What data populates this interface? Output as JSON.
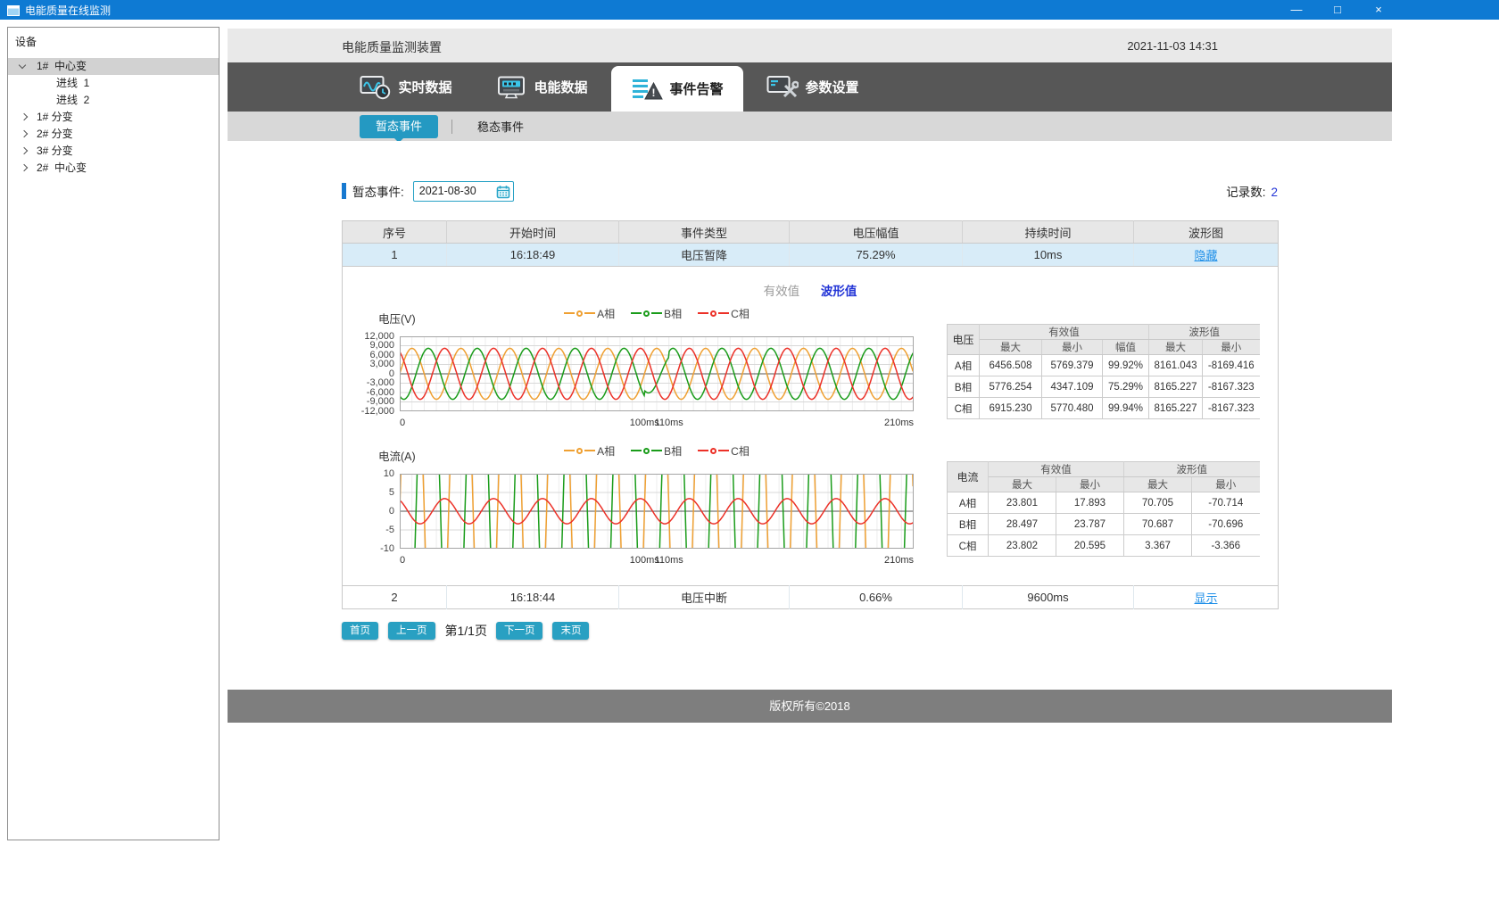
{
  "window": {
    "title": "电能质量在线监测",
    "minimize": "—",
    "maximize": "□",
    "close": "×"
  },
  "sidebar": {
    "header": "设备",
    "tree": [
      {
        "label": "1#  中心变",
        "level": 0,
        "state": "expanded",
        "selected": true
      },
      {
        "label": "进线  1",
        "level": 1,
        "state": "none",
        "selected": false
      },
      {
        "label": "进线  2",
        "level": 1,
        "state": "none",
        "selected": false
      },
      {
        "label": "1# 分变",
        "level": 0,
        "state": "collapsed",
        "selected": false
      },
      {
        "label": "2# 分变",
        "level": 0,
        "state": "collapsed",
        "selected": false
      },
      {
        "label": "3# 分变",
        "level": 0,
        "state": "collapsed",
        "selected": false
      },
      {
        "label": "2#  中心变",
        "level": 0,
        "state": "collapsed",
        "selected": false
      }
    ]
  },
  "header": {
    "title": "电能质量监测装置",
    "timestamp": "2021-11-03 14:31"
  },
  "tabs": [
    {
      "name": "realtime-data",
      "label": "实时数据",
      "icon": "realtime-data-icon",
      "active": false
    },
    {
      "name": "energy-data",
      "label": "电能数据",
      "icon": "energy-data-icon",
      "active": false
    },
    {
      "name": "event-alarm",
      "label": "事件告警",
      "icon": "event-alarm-icon",
      "active": true
    },
    {
      "name": "param-settings",
      "label": "参数设置",
      "icon": "settings-icon",
      "active": false
    }
  ],
  "subtabs": {
    "active": "暂态事件",
    "inactive": "稳态事件"
  },
  "filter": {
    "label": "暂态事件:",
    "date": "2021-08-30",
    "record_label": "记录数:",
    "record_count": "2"
  },
  "events": {
    "headers": [
      "序号",
      "开始时间",
      "事件类型",
      "电压幅值",
      "持续时间",
      "波形图"
    ],
    "rows": [
      {
        "cells": [
          "1",
          "16:18:49",
          "电压暂降",
          "75.29%",
          "10ms"
        ],
        "link": "隐藏",
        "highlight": true
      },
      {
        "cells": [
          "2",
          "16:18:44",
          "电压中断",
          "0.66%",
          "9600ms"
        ],
        "link": "显示",
        "highlight": false
      }
    ]
  },
  "detail": {
    "toggle": {
      "rms": "有效值",
      "wave": "波形值"
    }
  },
  "voltage_table": {
    "corner": "电压",
    "groups": [
      {
        "label": "有效值",
        "span": 3
      },
      {
        "label": "波形值",
        "span": 2
      }
    ],
    "subheaders": [
      "最大",
      "最小",
      "幅值",
      "最大",
      "最小"
    ],
    "rows": [
      [
        "A相",
        "6456.508",
        "5769.379",
        "99.92%",
        "8161.043",
        "-8169.416"
      ],
      [
        "B相",
        "5776.254",
        "4347.109",
        "75.29%",
        "8165.227",
        "-8167.323"
      ],
      [
        "C相",
        "6915.230",
        "5770.480",
        "99.94%",
        "8165.227",
        "-8167.323"
      ]
    ]
  },
  "current_table": {
    "corner": "电流",
    "groups": [
      {
        "label": "有效值",
        "span": 2
      },
      {
        "label": "波形值",
        "span": 2
      }
    ],
    "subheaders": [
      "最大",
      "最小",
      "最大",
      "最小"
    ],
    "rows": [
      [
        "A相",
        "23.801",
        "17.893",
        "70.705",
        "-70.714"
      ],
      [
        "B相",
        "28.497",
        "23.787",
        "70.687",
        "-70.696"
      ],
      [
        "C相",
        "23.802",
        "20.595",
        "3.367",
        "-3.366"
      ]
    ]
  },
  "pagination": {
    "first": "首页",
    "prev": "上一页",
    "page": "第1/1页",
    "next": "下一页",
    "last": "末页"
  },
  "footer": "版权所有©2018",
  "colors": {
    "titlebar": "#0e7ad3",
    "tab_dark": "#575757",
    "subtab_active": "#2499c2",
    "accent_blue": "#2133d6",
    "link": "#1f8fe8",
    "row_highlight": "#d8ecf8",
    "pager": "#29a0c2"
  },
  "chart_data": [
    {
      "type": "line",
      "title": "电压(V)",
      "frequency_hz": 50,
      "x_range_ms": [
        0,
        210
      ],
      "y_range": [
        -12000,
        12000
      ],
      "y_ticks": [
        "12,000",
        "9,000",
        "6,000",
        "3,000",
        "0",
        "-3,000",
        "-6,000",
        "-9,000",
        "-12,000"
      ],
      "x_ticks": [
        {
          "label": "0",
          "ms": 0
        },
        {
          "label": "100ms",
          "ms": 100
        },
        {
          "label": "110ms",
          "ms": 110
        },
        {
          "label": "210ms",
          "ms": 210
        }
      ],
      "grid_step_ms": 5,
      "legend_position": "top-center",
      "series": [
        {
          "name": "A相",
          "color": "#efa032",
          "amplitude": 8161,
          "phase_deg": 0
        },
        {
          "name": "B相",
          "color": "#1a9c1a",
          "amplitude": 8165,
          "phase_deg": -120,
          "sag": {
            "from_ms": 100,
            "to_ms": 110,
            "factor": 0.75
          }
        },
        {
          "name": "C相",
          "color": "#ec3128",
          "amplitude": 8165,
          "phase_deg": 120
        }
      ]
    },
    {
      "type": "line",
      "title": "电流(A)",
      "frequency_hz": 50,
      "x_range_ms": [
        0,
        210
      ],
      "y_range": [
        -10,
        10
      ],
      "y_ticks": [
        "10",
        "5",
        "0",
        "-5",
        "-10"
      ],
      "x_ticks": [
        {
          "label": "0",
          "ms": 0
        },
        {
          "label": "100ms",
          "ms": 100
        },
        {
          "label": "110ms",
          "ms": 110
        },
        {
          "label": "210ms",
          "ms": 210
        }
      ],
      "grid_step_ms": 5,
      "legend_position": "top-center",
      "series": [
        {
          "name": "A相",
          "color": "#efa032",
          "amplitude": 70.705,
          "phase_deg": 0
        },
        {
          "name": "B相",
          "color": "#1a9c1a",
          "amplitude": 70.687,
          "phase_deg": -120
        },
        {
          "name": "C相",
          "color": "#ec3128",
          "amplitude": 3.367,
          "phase_deg": 120
        }
      ]
    }
  ]
}
